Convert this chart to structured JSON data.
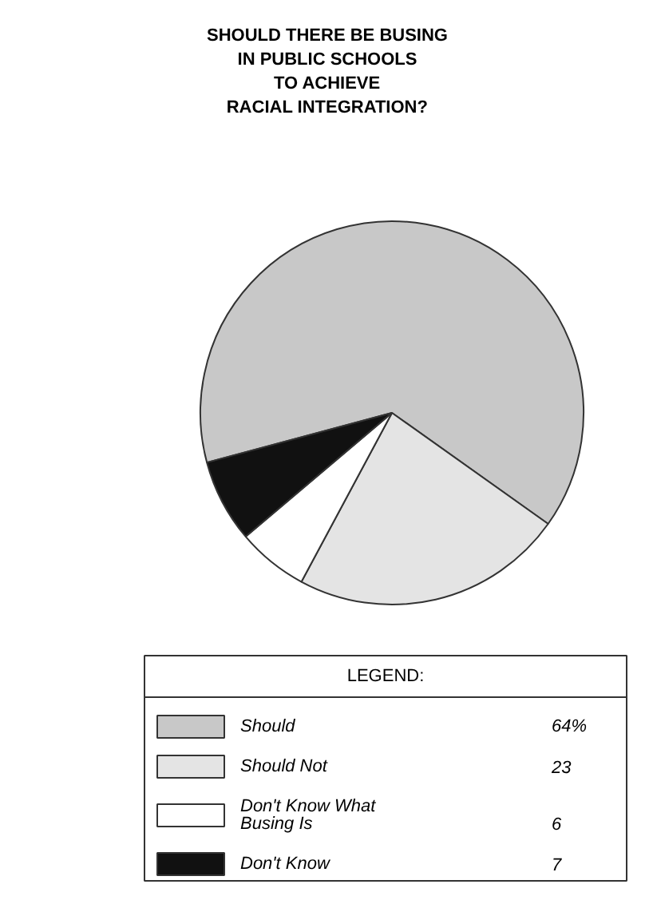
{
  "chart_data": {
    "type": "pie",
    "title": "SHOULD THERE BE BUSING\nIN PUBLIC SCHOOLS\nTO ACHIEVE\nRACIAL INTEGRATION?",
    "categories": [
      "Should",
      "Should Not",
      "Don't Know What Busing Is",
      "Don't Know"
    ],
    "values": [
      64,
      23,
      6,
      7
    ],
    "value_labels": [
      "64%",
      "23",
      "6",
      "7"
    ],
    "colors": [
      "#c8c8c8",
      "#e4e4e4",
      "#ffffff",
      "#111111"
    ],
    "legend_title": "LEGEND:",
    "legend": "bottom"
  }
}
